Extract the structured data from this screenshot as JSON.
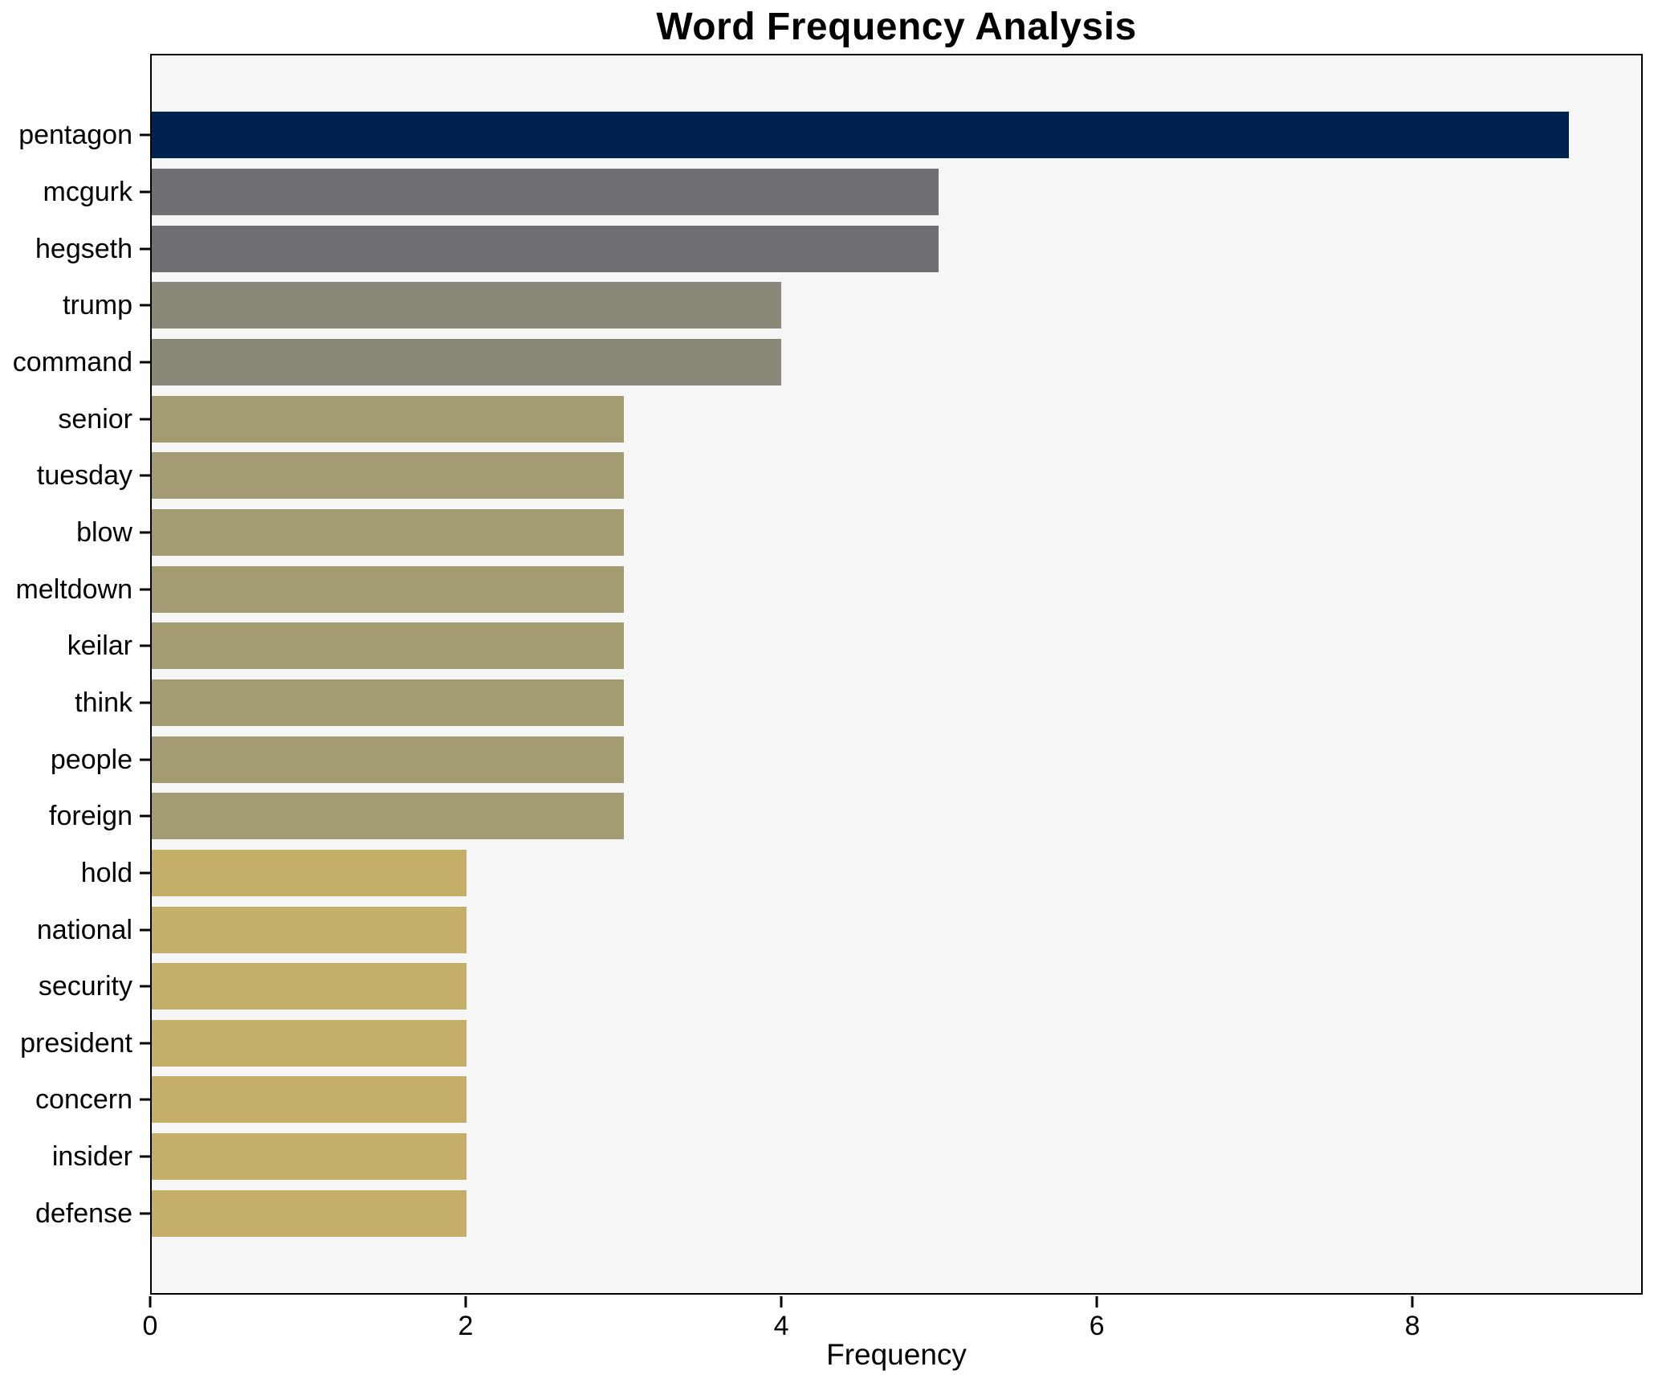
{
  "chart_data": {
    "type": "bar",
    "orientation": "horizontal",
    "title": "Word Frequency Analysis",
    "xlabel": "Frequency",
    "ylabel": "",
    "xlim": [
      0,
      9.46
    ],
    "xticks": [
      0,
      2,
      4,
      6,
      8
    ],
    "grid": false,
    "legend": "none",
    "categories": [
      "pentagon",
      "mcgurk",
      "hegseth",
      "trump",
      "command",
      "senior",
      "tuesday",
      "blow",
      "meltdown",
      "keilar",
      "think",
      "people",
      "foreign",
      "hold",
      "national",
      "security",
      "president",
      "concern",
      "insider",
      "defense"
    ],
    "values": [
      9,
      5,
      5,
      4,
      4,
      3,
      3,
      3,
      3,
      3,
      3,
      3,
      3,
      2,
      2,
      2,
      2,
      2,
      2,
      2
    ],
    "bar_colors": [
      "#002250",
      "#6f7073",
      "#6f7073",
      "#8b8779",
      "#8b8779",
      "#a39b71",
      "#a39b71",
      "#a39b71",
      "#a39b71",
      "#a39b71",
      "#a39b71",
      "#a39b71",
      "#a39b71",
      "#c3af67",
      "#c3af67",
      "#c3af67",
      "#c3af67",
      "#c3af67",
      "#c3af67",
      "#c3af67"
    ],
    "plot_background": "#f6f6f7",
    "spine_color": "#000000",
    "text_color": "#000000"
  }
}
